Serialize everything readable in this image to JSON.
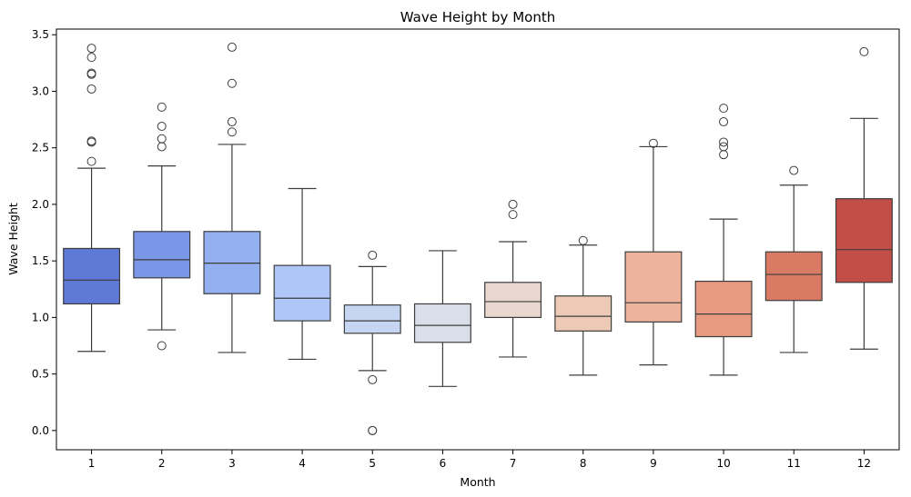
{
  "chart_data": {
    "type": "box",
    "title": "Wave Height by Month",
    "xlabel": "Month",
    "ylabel": "Wave Height",
    "ylim": [
      -0.17,
      3.55
    ],
    "yticks": [
      0.0,
      0.5,
      1.0,
      1.5,
      2.0,
      2.5,
      3.0,
      3.5
    ],
    "ytick_labels": [
      "0.0",
      "0.5",
      "1.0",
      "1.5",
      "2.0",
      "2.5",
      "3.0",
      "3.5"
    ],
    "categories": [
      "1",
      "2",
      "3",
      "4",
      "5",
      "6",
      "7",
      "8",
      "9",
      "10",
      "11",
      "12"
    ],
    "boxes": [
      {
        "month": "1",
        "whisker_low": 0.7,
        "q1": 1.12,
        "median": 1.33,
        "q3": 1.61,
        "whisker_high": 2.32,
        "outliers": [
          2.38,
          2.55,
          2.56,
          3.02,
          3.15,
          3.16,
          3.3,
          3.38
        ],
        "color": "#5f7ad6"
      },
      {
        "month": "2",
        "whisker_low": 0.89,
        "q1": 1.35,
        "median": 1.51,
        "q3": 1.76,
        "whisker_high": 2.34,
        "outliers": [
          0.75,
          2.51,
          2.58,
          2.69,
          2.86
        ],
        "color": "#7a96e6"
      },
      {
        "month": "3",
        "whisker_low": 0.69,
        "q1": 1.21,
        "median": 1.48,
        "q3": 1.76,
        "whisker_high": 2.53,
        "outliers": [
          2.64,
          2.73,
          3.07,
          3.39
        ],
        "color": "#93b0f1"
      },
      {
        "month": "4",
        "whisker_low": 0.63,
        "q1": 0.97,
        "median": 1.17,
        "q3": 1.46,
        "whisker_high": 2.14,
        "outliers": [],
        "color": "#afc6f8"
      },
      {
        "month": "5",
        "whisker_low": 0.53,
        "q1": 0.86,
        "median": 0.97,
        "q3": 1.11,
        "whisker_high": 1.45,
        "outliers": [
          0.45,
          0.0,
          0.0,
          1.55
        ],
        "color": "#c6d5f1"
      },
      {
        "month": "6",
        "whisker_low": 0.39,
        "q1": 0.78,
        "median": 0.93,
        "q3": 1.12,
        "whisker_high": 1.59,
        "outliers": [],
        "color": "#d9dee8"
      },
      {
        "month": "7",
        "whisker_low": 0.65,
        "q1": 1.0,
        "median": 1.14,
        "q3": 1.31,
        "whisker_high": 1.67,
        "outliers": [
          1.91,
          2.0
        ],
        "color": "#ead8d0"
      },
      {
        "month": "8",
        "whisker_low": 0.49,
        "q1": 0.88,
        "median": 1.01,
        "q3": 1.19,
        "whisker_high": 1.64,
        "outliers": [
          1.68
        ],
        "color": "#eccab5"
      },
      {
        "month": "9",
        "whisker_low": 0.58,
        "q1": 0.96,
        "median": 1.13,
        "q3": 1.58,
        "whisker_high": 2.51,
        "outliers": [
          2.54
        ],
        "color": "#edb39c"
      },
      {
        "month": "10",
        "whisker_low": 0.49,
        "q1": 0.83,
        "median": 1.03,
        "q3": 1.32,
        "whisker_high": 1.87,
        "outliers": [
          2.44,
          2.51,
          2.55,
          2.73,
          2.85
        ],
        "color": "#e69a80"
      },
      {
        "month": "11",
        "whisker_low": 0.69,
        "q1": 1.15,
        "median": 1.38,
        "q3": 1.58,
        "whisker_high": 2.17,
        "outliers": [
          2.3
        ],
        "color": "#d97a65"
      },
      {
        "month": "12",
        "whisker_low": 0.72,
        "q1": 1.31,
        "median": 1.6,
        "q3": 2.05,
        "whisker_high": 2.76,
        "outliers": [
          3.35
        ],
        "color": "#c24e48"
      }
    ]
  }
}
